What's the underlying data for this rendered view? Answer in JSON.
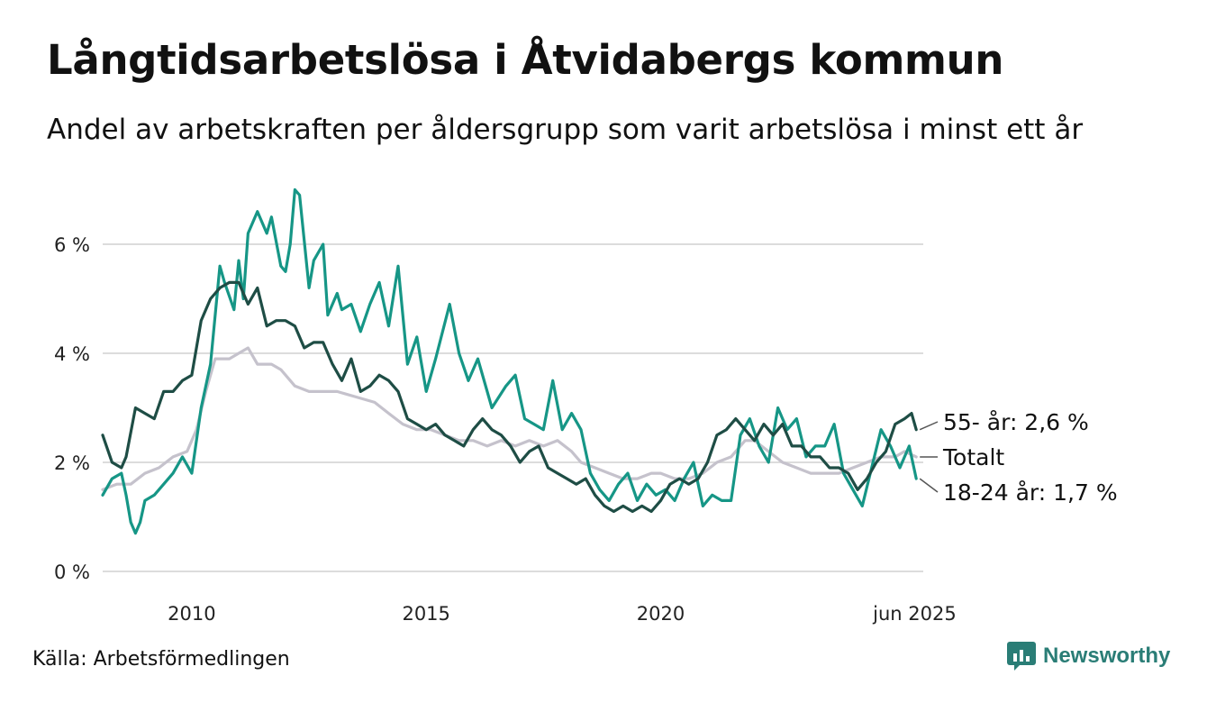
{
  "title": "Långtidsarbetslösa i Åtvidabergs kommun",
  "subtitle": "Andel av arbetskraften per åldersgrupp som varit arbetslösa i minst ett år",
  "source": "Källa: Arbetsförmedlingen",
  "brand": "Newsworthy",
  "chart_data": {
    "type": "line",
    "y_ticks": [
      "0 %",
      "2 %",
      "4 %",
      "6 %"
    ],
    "x_ticks": [
      "2010",
      "2015",
      "2020",
      "jun 2025"
    ],
    "ylim": [
      0,
      7.2
    ],
    "xlim": [
      2008.1,
      2025.6
    ],
    "grid": "horizontal",
    "colors": {
      "55": "#1e4d45",
      "total": "#c5c2cc",
      "1824": "#169686",
      "grid": "#dcdcdc",
      "brand": "#2a7d76"
    },
    "series": [
      {
        "key": "total",
        "name": "Totalt",
        "end_label": "Totalt",
        "points": [
          [
            2008.1,
            1.5
          ],
          [
            2008.4,
            1.6
          ],
          [
            2008.7,
            1.6
          ],
          [
            2009.0,
            1.8
          ],
          [
            2009.3,
            1.9
          ],
          [
            2009.6,
            2.1
          ],
          [
            2009.9,
            2.2
          ],
          [
            2010.1,
            2.6
          ],
          [
            2010.3,
            3.3
          ],
          [
            2010.5,
            3.9
          ],
          [
            2010.8,
            3.9
          ],
          [
            2011.0,
            4.0
          ],
          [
            2011.2,
            4.1
          ],
          [
            2011.4,
            3.8
          ],
          [
            2011.7,
            3.8
          ],
          [
            2011.9,
            3.7
          ],
          [
            2012.2,
            3.4
          ],
          [
            2012.5,
            3.3
          ],
          [
            2012.8,
            3.3
          ],
          [
            2013.1,
            3.3
          ],
          [
            2013.5,
            3.2
          ],
          [
            2013.9,
            3.1
          ],
          [
            2014.2,
            2.9
          ],
          [
            2014.5,
            2.7
          ],
          [
            2014.8,
            2.6
          ],
          [
            2015.1,
            2.6
          ],
          [
            2015.4,
            2.5
          ],
          [
            2015.7,
            2.4
          ],
          [
            2016.0,
            2.4
          ],
          [
            2016.3,
            2.3
          ],
          [
            2016.6,
            2.4
          ],
          [
            2016.9,
            2.3
          ],
          [
            2017.2,
            2.4
          ],
          [
            2017.5,
            2.3
          ],
          [
            2017.8,
            2.4
          ],
          [
            2018.1,
            2.2
          ],
          [
            2018.3,
            2.0
          ],
          [
            2018.6,
            1.9
          ],
          [
            2018.9,
            1.8
          ],
          [
            2019.2,
            1.7
          ],
          [
            2019.5,
            1.7
          ],
          [
            2019.8,
            1.8
          ],
          [
            2020.0,
            1.8
          ],
          [
            2020.3,
            1.7
          ],
          [
            2020.6,
            1.7
          ],
          [
            2020.9,
            1.8
          ],
          [
            2021.2,
            2.0
          ],
          [
            2021.5,
            2.1
          ],
          [
            2021.8,
            2.4
          ],
          [
            2022.0,
            2.4
          ],
          [
            2022.3,
            2.2
          ],
          [
            2022.6,
            2.0
          ],
          [
            2022.9,
            1.9
          ],
          [
            2023.2,
            1.8
          ],
          [
            2023.5,
            1.8
          ],
          [
            2023.8,
            1.8
          ],
          [
            2024.1,
            1.9
          ],
          [
            2024.4,
            2.0
          ],
          [
            2024.7,
            2.1
          ],
          [
            2025.0,
            2.1
          ],
          [
            2025.2,
            2.2
          ],
          [
            2025.45,
            2.1
          ]
        ]
      },
      {
        "key": "1824",
        "name": "18-24 år",
        "end_label": "18-24 år: 1,7 %",
        "points": [
          [
            2008.1,
            1.4
          ],
          [
            2008.3,
            1.7
          ],
          [
            2008.5,
            1.8
          ],
          [
            2008.6,
            1.4
          ],
          [
            2008.7,
            0.9
          ],
          [
            2008.8,
            0.7
          ],
          [
            2008.9,
            0.9
          ],
          [
            2009.0,
            1.3
          ],
          [
            2009.2,
            1.4
          ],
          [
            2009.4,
            1.6
          ],
          [
            2009.6,
            1.8
          ],
          [
            2009.8,
            2.1
          ],
          [
            2010.0,
            1.8
          ],
          [
            2010.2,
            3.0
          ],
          [
            2010.4,
            3.8
          ],
          [
            2010.6,
            5.6
          ],
          [
            2010.7,
            5.3
          ],
          [
            2010.9,
            4.8
          ],
          [
            2011.0,
            5.7
          ],
          [
            2011.1,
            5.0
          ],
          [
            2011.2,
            6.2
          ],
          [
            2011.4,
            6.6
          ],
          [
            2011.6,
            6.2
          ],
          [
            2011.7,
            6.5
          ],
          [
            2011.9,
            5.6
          ],
          [
            2012.0,
            5.5
          ],
          [
            2012.1,
            6.0
          ],
          [
            2012.2,
            7.0
          ],
          [
            2012.3,
            6.9
          ],
          [
            2012.5,
            5.2
          ],
          [
            2012.6,
            5.7
          ],
          [
            2012.8,
            6.0
          ],
          [
            2012.9,
            4.7
          ],
          [
            2013.1,
            5.1
          ],
          [
            2013.2,
            4.8
          ],
          [
            2013.4,
            4.9
          ],
          [
            2013.6,
            4.4
          ],
          [
            2013.8,
            4.9
          ],
          [
            2014.0,
            5.3
          ],
          [
            2014.2,
            4.5
          ],
          [
            2014.4,
            5.6
          ],
          [
            2014.6,
            3.8
          ],
          [
            2014.8,
            4.3
          ],
          [
            2015.0,
            3.3
          ],
          [
            2015.2,
            3.9
          ],
          [
            2015.5,
            4.9
          ],
          [
            2015.7,
            4.0
          ],
          [
            2015.9,
            3.5
          ],
          [
            2016.1,
            3.9
          ],
          [
            2016.4,
            3.0
          ],
          [
            2016.7,
            3.4
          ],
          [
            2016.9,
            3.6
          ],
          [
            2017.1,
            2.8
          ],
          [
            2017.3,
            2.7
          ],
          [
            2017.5,
            2.6
          ],
          [
            2017.7,
            3.5
          ],
          [
            2017.9,
            2.6
          ],
          [
            2018.1,
            2.9
          ],
          [
            2018.3,
            2.6
          ],
          [
            2018.5,
            1.8
          ],
          [
            2018.7,
            1.5
          ],
          [
            2018.9,
            1.3
          ],
          [
            2019.1,
            1.6
          ],
          [
            2019.3,
            1.8
          ],
          [
            2019.5,
            1.3
          ],
          [
            2019.7,
            1.6
          ],
          [
            2019.9,
            1.4
          ],
          [
            2020.1,
            1.5
          ],
          [
            2020.3,
            1.3
          ],
          [
            2020.5,
            1.7
          ],
          [
            2020.7,
            2.0
          ],
          [
            2020.9,
            1.2
          ],
          [
            2021.1,
            1.4
          ],
          [
            2021.3,
            1.3
          ],
          [
            2021.5,
            1.3
          ],
          [
            2021.7,
            2.5
          ],
          [
            2021.9,
            2.8
          ],
          [
            2022.1,
            2.3
          ],
          [
            2022.3,
            2.0
          ],
          [
            2022.5,
            3.0
          ],
          [
            2022.7,
            2.6
          ],
          [
            2022.9,
            2.8
          ],
          [
            2023.1,
            2.1
          ],
          [
            2023.3,
            2.3
          ],
          [
            2023.5,
            2.3
          ],
          [
            2023.7,
            2.7
          ],
          [
            2023.9,
            1.8
          ],
          [
            2024.1,
            1.5
          ],
          [
            2024.3,
            1.2
          ],
          [
            2024.5,
            1.9
          ],
          [
            2024.7,
            2.6
          ],
          [
            2024.9,
            2.3
          ],
          [
            2025.1,
            1.9
          ],
          [
            2025.3,
            2.3
          ],
          [
            2025.45,
            1.7
          ]
        ]
      },
      {
        "key": "55",
        "name": "55- år",
        "end_label": "55- år: 2,6 %",
        "points": [
          [
            2008.1,
            2.5
          ],
          [
            2008.3,
            2.0
          ],
          [
            2008.5,
            1.9
          ],
          [
            2008.6,
            2.1
          ],
          [
            2008.8,
            3.0
          ],
          [
            2009.0,
            2.9
          ],
          [
            2009.2,
            2.8
          ],
          [
            2009.4,
            3.3
          ],
          [
            2009.6,
            3.3
          ],
          [
            2009.8,
            3.5
          ],
          [
            2010.0,
            3.6
          ],
          [
            2010.2,
            4.6
          ],
          [
            2010.4,
            5.0
          ],
          [
            2010.6,
            5.2
          ],
          [
            2010.8,
            5.3
          ],
          [
            2011.0,
            5.3
          ],
          [
            2011.2,
            4.9
          ],
          [
            2011.4,
            5.2
          ],
          [
            2011.6,
            4.5
          ],
          [
            2011.8,
            4.6
          ],
          [
            2012.0,
            4.6
          ],
          [
            2012.2,
            4.5
          ],
          [
            2012.4,
            4.1
          ],
          [
            2012.6,
            4.2
          ],
          [
            2012.8,
            4.2
          ],
          [
            2013.0,
            3.8
          ],
          [
            2013.2,
            3.5
          ],
          [
            2013.4,
            3.9
          ],
          [
            2013.6,
            3.3
          ],
          [
            2013.8,
            3.4
          ],
          [
            2014.0,
            3.6
          ],
          [
            2014.2,
            3.5
          ],
          [
            2014.4,
            3.3
          ],
          [
            2014.6,
            2.8
          ],
          [
            2014.8,
            2.7
          ],
          [
            2015.0,
            2.6
          ],
          [
            2015.2,
            2.7
          ],
          [
            2015.4,
            2.5
          ],
          [
            2015.6,
            2.4
          ],
          [
            2015.8,
            2.3
          ],
          [
            2016.0,
            2.6
          ],
          [
            2016.2,
            2.8
          ],
          [
            2016.4,
            2.6
          ],
          [
            2016.6,
            2.5
          ],
          [
            2016.8,
            2.3
          ],
          [
            2017.0,
            2.0
          ],
          [
            2017.2,
            2.2
          ],
          [
            2017.4,
            2.3
          ],
          [
            2017.6,
            1.9
          ],
          [
            2017.8,
            1.8
          ],
          [
            2018.0,
            1.7
          ],
          [
            2018.2,
            1.6
          ],
          [
            2018.4,
            1.7
          ],
          [
            2018.6,
            1.4
          ],
          [
            2018.8,
            1.2
          ],
          [
            2019.0,
            1.1
          ],
          [
            2019.2,
            1.2
          ],
          [
            2019.4,
            1.1
          ],
          [
            2019.6,
            1.2
          ],
          [
            2019.8,
            1.1
          ],
          [
            2020.0,
            1.3
          ],
          [
            2020.2,
            1.6
          ],
          [
            2020.4,
            1.7
          ],
          [
            2020.6,
            1.6
          ],
          [
            2020.8,
            1.7
          ],
          [
            2021.0,
            2.0
          ],
          [
            2021.2,
            2.5
          ],
          [
            2021.4,
            2.6
          ],
          [
            2021.6,
            2.8
          ],
          [
            2021.8,
            2.6
          ],
          [
            2022.0,
            2.4
          ],
          [
            2022.2,
            2.7
          ],
          [
            2022.4,
            2.5
          ],
          [
            2022.6,
            2.7
          ],
          [
            2022.8,
            2.3
          ],
          [
            2023.0,
            2.3
          ],
          [
            2023.2,
            2.1
          ],
          [
            2023.4,
            2.1
          ],
          [
            2023.6,
            1.9
          ],
          [
            2023.8,
            1.9
          ],
          [
            2024.0,
            1.8
          ],
          [
            2024.2,
            1.5
          ],
          [
            2024.4,
            1.7
          ],
          [
            2024.6,
            2.0
          ],
          [
            2024.8,
            2.2
          ],
          [
            2025.0,
            2.7
          ],
          [
            2025.2,
            2.8
          ],
          [
            2025.35,
            2.9
          ],
          [
            2025.45,
            2.6
          ]
        ]
      }
    ]
  }
}
